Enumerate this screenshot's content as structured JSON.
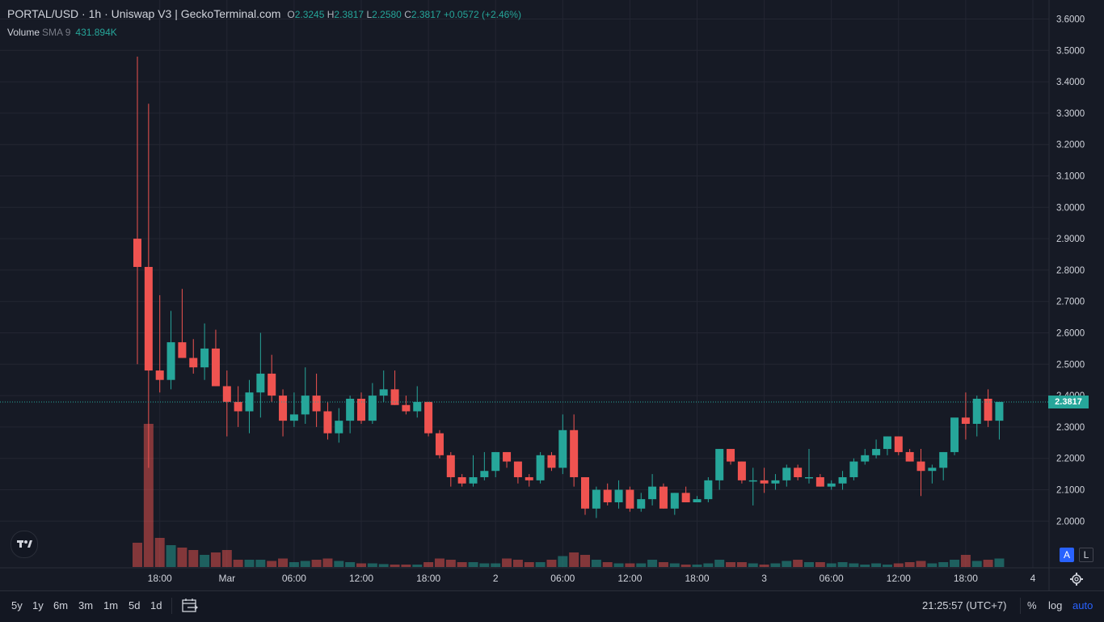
{
  "header": {
    "title": "PORTAL/USD · 1h · Uniswap V3 | GeckoTerminal.com",
    "o_label": "O",
    "o_value": "2.3245",
    "h_label": "H",
    "h_value": "2.3817",
    "l_label": "L",
    "l_value": "2.2580",
    "c_label": "C",
    "c_value": "2.3817",
    "change": "+0.0572 (+2.46%)"
  },
  "volume_legend": {
    "label": "Volume",
    "sma": "SMA 9",
    "value": "431.894K"
  },
  "last_price": "2.3817",
  "toolbar": {
    "timeframes": [
      "5y",
      "1y",
      "6m",
      "3m",
      "1m",
      "5d",
      "1d"
    ],
    "clock": "21:25:57 (UTC+7)",
    "percent": "%",
    "log": "log",
    "auto": "auto"
  },
  "axis_buttons": {
    "auto": "A",
    "log": "L"
  },
  "icons": {
    "logo": "tradingview-logo-icon",
    "calendar": "calendar-range-icon",
    "settings": "gear-icon"
  },
  "colors": {
    "up": "#26a69a",
    "down": "#ef5350",
    "background": "#161a25",
    "grid": "#232632",
    "accent": "#2962ff"
  },
  "chart_data": {
    "type": "candlestick",
    "title": "PORTAL/USD · 1h · Uniswap V3 | GeckoTerminal.com",
    "y_ticks": [
      "2.0000",
      "2.1000",
      "2.2000",
      "2.3000",
      "2.4000",
      "2.5000",
      "2.6000",
      "2.7000",
      "2.8000",
      "2.9000",
      "3.0000",
      "3.1000",
      "3.2000",
      "3.3000",
      "3.4000",
      "3.5000",
      "3.6000"
    ],
    "ylim": [
      1.9,
      3.6
    ],
    "x_ticks": [
      {
        "label": "18:00",
        "index": 2
      },
      {
        "label": "Mar",
        "index": 8
      },
      {
        "label": "06:00",
        "index": 14
      },
      {
        "label": "12:00",
        "index": 20
      },
      {
        "label": "18:00",
        "index": 26
      },
      {
        "label": "2",
        "index": 32
      },
      {
        "label": "06:00",
        "index": 38
      },
      {
        "label": "12:00",
        "index": 44
      },
      {
        "label": "18:00",
        "index": 50
      },
      {
        "label": "3",
        "index": 56
      },
      {
        "label": "06:00",
        "index": 62
      },
      {
        "label": "12:00",
        "index": 68
      },
      {
        "label": "18:00",
        "index": 74
      },
      {
        "label": "4",
        "index": 80
      }
    ],
    "candles": [
      {
        "o": 2.9,
        "h": 3.48,
        "l": 2.5,
        "c": 2.81,
        "v": 1.0
      },
      {
        "o": 2.81,
        "h": 3.33,
        "l": 2.17,
        "c": 2.48,
        "v": 5.9
      },
      {
        "o": 2.48,
        "h": 2.72,
        "l": 2.41,
        "c": 2.45,
        "v": 1.2
      },
      {
        "o": 2.45,
        "h": 2.67,
        "l": 2.42,
        "c": 2.57,
        "v": 0.9
      },
      {
        "o": 2.57,
        "h": 2.74,
        "l": 2.52,
        "c": 2.52,
        "v": 0.8
      },
      {
        "o": 2.52,
        "h": 2.58,
        "l": 2.47,
        "c": 2.49,
        "v": 0.7
      },
      {
        "o": 2.49,
        "h": 2.63,
        "l": 2.45,
        "c": 2.55,
        "v": 0.5
      },
      {
        "o": 2.55,
        "h": 2.61,
        "l": 2.43,
        "c": 2.43,
        "v": 0.6
      },
      {
        "o": 2.43,
        "h": 2.48,
        "l": 2.27,
        "c": 2.38,
        "v": 0.7
      },
      {
        "o": 2.38,
        "h": 2.43,
        "l": 2.3,
        "c": 2.35,
        "v": 0.3
      },
      {
        "o": 2.35,
        "h": 2.45,
        "l": 2.28,
        "c": 2.41,
        "v": 0.3
      },
      {
        "o": 2.41,
        "h": 2.6,
        "l": 2.33,
        "c": 2.47,
        "v": 0.3
      },
      {
        "o": 2.47,
        "h": 2.53,
        "l": 2.38,
        "c": 2.4,
        "v": 0.25
      },
      {
        "o": 2.4,
        "h": 2.42,
        "l": 2.27,
        "c": 2.32,
        "v": 0.35
      },
      {
        "o": 2.32,
        "h": 2.41,
        "l": 2.3,
        "c": 2.34,
        "v": 0.2
      },
      {
        "o": 2.34,
        "h": 2.49,
        "l": 2.31,
        "c": 2.4,
        "v": 0.25
      },
      {
        "o": 2.4,
        "h": 2.47,
        "l": 2.3,
        "c": 2.35,
        "v": 0.3
      },
      {
        "o": 2.35,
        "h": 2.38,
        "l": 2.26,
        "c": 2.28,
        "v": 0.35
      },
      {
        "o": 2.28,
        "h": 2.36,
        "l": 2.25,
        "c": 2.32,
        "v": 0.25
      },
      {
        "o": 2.32,
        "h": 2.4,
        "l": 2.28,
        "c": 2.39,
        "v": 0.2
      },
      {
        "o": 2.39,
        "h": 2.41,
        "l": 2.31,
        "c": 2.32,
        "v": 0.15
      },
      {
        "o": 2.32,
        "h": 2.44,
        "l": 2.31,
        "c": 2.4,
        "v": 0.15
      },
      {
        "o": 2.4,
        "h": 2.48,
        "l": 2.38,
        "c": 2.42,
        "v": 0.12
      },
      {
        "o": 2.42,
        "h": 2.48,
        "l": 2.37,
        "c": 2.37,
        "v": 0.1
      },
      {
        "o": 2.37,
        "h": 2.4,
        "l": 2.34,
        "c": 2.35,
        "v": 0.1
      },
      {
        "o": 2.35,
        "h": 2.43,
        "l": 2.33,
        "c": 2.38,
        "v": 0.1
      },
      {
        "o": 2.38,
        "h": 2.38,
        "l": 2.27,
        "c": 2.28,
        "v": 0.2
      },
      {
        "o": 2.28,
        "h": 2.29,
        "l": 2.2,
        "c": 2.21,
        "v": 0.35
      },
      {
        "o": 2.21,
        "h": 2.22,
        "l": 2.11,
        "c": 2.14,
        "v": 0.3
      },
      {
        "o": 2.14,
        "h": 2.15,
        "l": 2.11,
        "c": 2.12,
        "v": 0.2
      },
      {
        "o": 2.12,
        "h": 2.21,
        "l": 2.11,
        "c": 2.14,
        "v": 0.2
      },
      {
        "o": 2.14,
        "h": 2.22,
        "l": 2.13,
        "c": 2.16,
        "v": 0.15
      },
      {
        "o": 2.16,
        "h": 2.22,
        "l": 2.14,
        "c": 2.22,
        "v": 0.15
      },
      {
        "o": 2.22,
        "h": 2.22,
        "l": 2.17,
        "c": 2.19,
        "v": 0.35
      },
      {
        "o": 2.19,
        "h": 2.19,
        "l": 2.12,
        "c": 2.14,
        "v": 0.3
      },
      {
        "o": 2.14,
        "h": 2.15,
        "l": 2.11,
        "c": 2.13,
        "v": 0.2
      },
      {
        "o": 2.13,
        "h": 2.22,
        "l": 2.12,
        "c": 2.21,
        "v": 0.2
      },
      {
        "o": 2.21,
        "h": 2.22,
        "l": 2.16,
        "c": 2.17,
        "v": 0.3
      },
      {
        "o": 2.17,
        "h": 2.34,
        "l": 2.15,
        "c": 2.29,
        "v": 0.45
      },
      {
        "o": 2.29,
        "h": 2.34,
        "l": 2.11,
        "c": 2.14,
        "v": 0.6
      },
      {
        "o": 2.14,
        "h": 2.14,
        "l": 2.02,
        "c": 2.04,
        "v": 0.5
      },
      {
        "o": 2.04,
        "h": 2.11,
        "l": 2.01,
        "c": 2.1,
        "v": 0.3
      },
      {
        "o": 2.1,
        "h": 2.12,
        "l": 2.05,
        "c": 2.06,
        "v": 0.2
      },
      {
        "o": 2.06,
        "h": 2.13,
        "l": 2.04,
        "c": 2.1,
        "v": 0.15
      },
      {
        "o": 2.1,
        "h": 2.11,
        "l": 2.03,
        "c": 2.04,
        "v": 0.15
      },
      {
        "o": 2.04,
        "h": 2.09,
        "l": 2.03,
        "c": 2.07,
        "v": 0.15
      },
      {
        "o": 2.07,
        "h": 2.15,
        "l": 2.05,
        "c": 2.11,
        "v": 0.3
      },
      {
        "o": 2.11,
        "h": 2.12,
        "l": 2.04,
        "c": 2.04,
        "v": 0.2
      },
      {
        "o": 2.04,
        "h": 2.09,
        "l": 2.02,
        "c": 2.09,
        "v": 0.15
      },
      {
        "o": 2.09,
        "h": 2.11,
        "l": 2.06,
        "c": 2.06,
        "v": 0.1
      },
      {
        "o": 2.06,
        "h": 2.08,
        "l": 2.06,
        "c": 2.07,
        "v": 0.1
      },
      {
        "o": 2.07,
        "h": 2.14,
        "l": 2.06,
        "c": 2.13,
        "v": 0.15
      },
      {
        "o": 2.13,
        "h": 2.23,
        "l": 2.1,
        "c": 2.23,
        "v": 0.3
      },
      {
        "o": 2.23,
        "h": 2.23,
        "l": 2.18,
        "c": 2.19,
        "v": 0.2
      },
      {
        "o": 2.19,
        "h": 2.19,
        "l": 2.12,
        "c": 2.13,
        "v": 0.2
      },
      {
        "o": 2.13,
        "h": 2.17,
        "l": 2.05,
        "c": 2.13,
        "v": 0.15
      },
      {
        "o": 2.13,
        "h": 2.17,
        "l": 2.09,
        "c": 2.12,
        "v": 0.1
      },
      {
        "o": 2.12,
        "h": 2.15,
        "l": 2.1,
        "c": 2.13,
        "v": 0.15
      },
      {
        "o": 2.13,
        "h": 2.18,
        "l": 2.11,
        "c": 2.17,
        "v": 0.25
      },
      {
        "o": 2.17,
        "h": 2.18,
        "l": 2.13,
        "c": 2.14,
        "v": 0.3
      },
      {
        "o": 2.14,
        "h": 2.23,
        "l": 2.12,
        "c": 2.14,
        "v": 0.2
      },
      {
        "o": 2.14,
        "h": 2.15,
        "l": 2.11,
        "c": 2.11,
        "v": 0.2
      },
      {
        "o": 2.11,
        "h": 2.13,
        "l": 2.1,
        "c": 2.12,
        "v": 0.15
      },
      {
        "o": 2.12,
        "h": 2.16,
        "l": 2.1,
        "c": 2.14,
        "v": 0.2
      },
      {
        "o": 2.14,
        "h": 2.2,
        "l": 2.13,
        "c": 2.19,
        "v": 0.15
      },
      {
        "o": 2.19,
        "h": 2.23,
        "l": 2.18,
        "c": 2.21,
        "v": 0.1
      },
      {
        "o": 2.21,
        "h": 2.26,
        "l": 2.2,
        "c": 2.23,
        "v": 0.15
      },
      {
        "o": 2.23,
        "h": 2.27,
        "l": 2.21,
        "c": 2.27,
        "v": 0.1
      },
      {
        "o": 2.27,
        "h": 2.27,
        "l": 2.21,
        "c": 2.22,
        "v": 0.15
      },
      {
        "o": 2.22,
        "h": 2.23,
        "l": 2.19,
        "c": 2.19,
        "v": 0.2
      },
      {
        "o": 2.19,
        "h": 2.23,
        "l": 2.08,
        "c": 2.16,
        "v": 0.25
      },
      {
        "o": 2.16,
        "h": 2.18,
        "l": 2.12,
        "c": 2.17,
        "v": 0.15
      },
      {
        "o": 2.17,
        "h": 2.22,
        "l": 2.13,
        "c": 2.22,
        "v": 0.2
      },
      {
        "o": 2.22,
        "h": 2.32,
        "l": 2.21,
        "c": 2.33,
        "v": 0.3
      },
      {
        "o": 2.33,
        "h": 2.41,
        "l": 2.26,
        "c": 2.31,
        "v": 0.5
      },
      {
        "o": 2.31,
        "h": 2.4,
        "l": 2.27,
        "c": 2.39,
        "v": 0.25
      },
      {
        "o": 2.39,
        "h": 2.42,
        "l": 2.3,
        "c": 2.32,
        "v": 0.3
      },
      {
        "o": 2.32,
        "h": 2.38,
        "l": 2.26,
        "c": 2.38,
        "v": 0.35
      }
    ]
  }
}
